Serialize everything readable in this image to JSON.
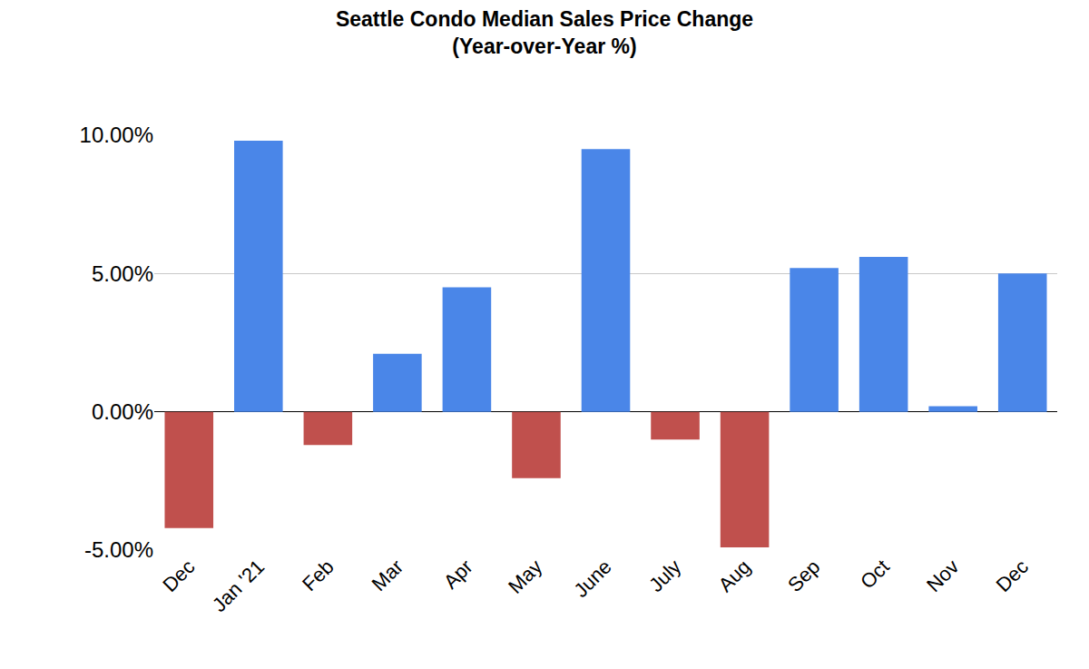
{
  "chart_data": {
    "type": "bar",
    "title": "Seattle Condo Median Sales Price Change",
    "subtitle": "(Year-over-Year %)",
    "categories": [
      "Dec",
      "Jan '21",
      "Feb",
      "Mar",
      "Apr",
      "May",
      "June",
      "July",
      "Aug",
      "Sep",
      "Oct",
      "Nov",
      "Dec"
    ],
    "values": [
      -4.2,
      9.8,
      -1.2,
      2.1,
      4.5,
      -2.4,
      9.5,
      -1.0,
      -4.9,
      5.2,
      5.6,
      0.2,
      5.0
    ],
    "colors": [
      "#c0504d",
      "#4a86e8",
      "#c0504d",
      "#4a86e8",
      "#4a86e8",
      "#c0504d",
      "#4a86e8",
      "#c0504d",
      "#c0504d",
      "#4a86e8",
      "#4a86e8",
      "#4a86e8",
      "#4a86e8"
    ],
    "ylim": [
      -5,
      10
    ],
    "yticks": [
      {
        "value": -5,
        "label": "-5.00%"
      },
      {
        "value": 0,
        "label": "0.00%"
      },
      {
        "value": 5,
        "label": "5.00%"
      },
      {
        "value": 10,
        "label": "10.00%"
      }
    ],
    "grid": true
  }
}
